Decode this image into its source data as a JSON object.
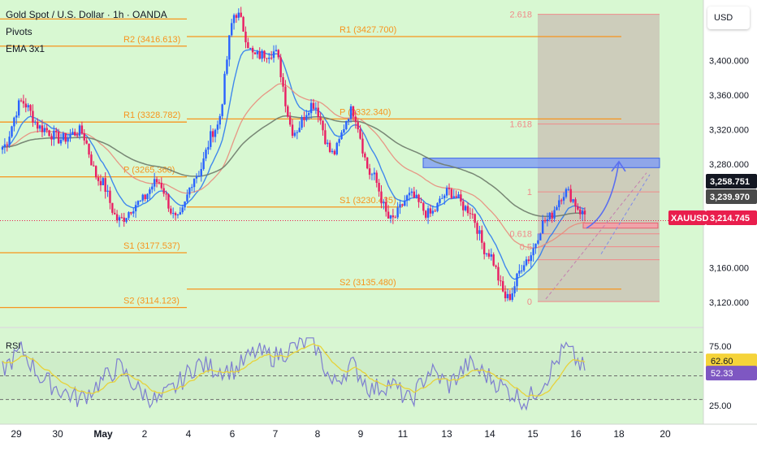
{
  "header": {
    "title": "Gold Spot / U.S. Dollar · 1h · OANDA",
    "indicator1": "Pivots",
    "indicator2": "EMA 3x1"
  },
  "currency_button": "USD",
  "rsi_label": "RSI",
  "colors": {
    "bg": "#d8f8d2",
    "rsi_bg": "#d8f6d2",
    "pivot": "#f7941d",
    "ema_fast": "#2f7bf0",
    "ema_mid": "#e98c7c",
    "ema_slow": "#6e7a6a",
    "up": "#2962ff",
    "down": "#e91e63",
    "rsi": "#7e7ed0",
    "rsi_ma": "#e7d23a",
    "zone": "#c9bfb3",
    "blue_zone": "#7f9cf5",
    "red_zone": "#f4a0a8"
  },
  "chart_data": {
    "type": "candlestick",
    "title": "Gold Spot / U.S. Dollar · 1h · OANDA",
    "symbol": "XAUUSD",
    "ylim": [
      3092,
      3470
    ],
    "y_ticks": [
      "3,400.000",
      "3,360.000",
      "3,320.000",
      "3,280.000",
      "3,160.000",
      "3,120.000"
    ],
    "x_ticks": [
      "29",
      "30",
      "May",
      "2",
      "4",
      "6",
      "7",
      "8",
      "9",
      "11",
      "13",
      "14",
      "15",
      "16",
      "18",
      "20"
    ],
    "price_labels": [
      {
        "text": "3,258.751",
        "value": 3258.751,
        "color": "#131722"
      },
      {
        "text": "3,239.970",
        "value": 3239.97,
        "color": "#4a4a4a"
      },
      {
        "text": "3,214.745",
        "value": 3214.745,
        "color": "#e91e4d"
      }
    ],
    "symbol_label": "XAUUSD",
    "pivot_levels": [
      {
        "label": "R2 (3416.613)",
        "value": 3416.613
      },
      {
        "label": "R1 (3328.782)",
        "value": 3328.782
      },
      {
        "label": "P (3265.360)",
        "value": 3265.36
      },
      {
        "label": "S1 (3177.537)",
        "value": 3177.537
      },
      {
        "label": "S2 (3114.123)",
        "value": 3114.123
      },
      {
        "label": "R1 (3427.700)",
        "value": 3427.7
      },
      {
        "label": "P (3332.340)",
        "value": 3332.34
      },
      {
        "label": "S1 (3230.435)",
        "value": 3230.435
      },
      {
        "label": "S2 (3135.480)",
        "value": 3135.48
      }
    ],
    "fib_levels": [
      {
        "label": "2.618",
        "ratio": 2.618
      },
      {
        "label": "1.618",
        "ratio": 1.618
      },
      {
        "label": "1",
        "ratio": 1
      },
      {
        "label": "0.618",
        "ratio": 0.618
      },
      {
        "label": "0.5",
        "ratio": 0.5
      },
      {
        "label": "0",
        "ratio": 0
      }
    ],
    "fib_low": 3121,
    "fib_high": 3248,
    "zones": [
      {
        "name": "resistance",
        "from": 3276,
        "to": 3287
      },
      {
        "name": "support",
        "from": 3206,
        "to": 3212
      }
    ],
    "ohlc_keypoints": [
      3300,
      3352,
      3322,
      3309,
      3318,
      3262,
      3215,
      3235,
      3260,
      3215,
      3268,
      3322,
      3455,
      3405,
      3410,
      3318,
      3350,
      3292,
      3342,
      3268,
      3215,
      3243,
      3222,
      3248,
      3228,
      3178,
      3125,
      3170,
      3215,
      3248,
      3222
    ],
    "rsi": {
      "ylim": [
        0,
        100
      ],
      "y_ticks": [
        "75.00",
        "25.00"
      ],
      "bands": [
        70,
        50,
        30
      ],
      "rsi_value": 62.6,
      "rsi_ma_value": 52.33,
      "rsi_label": "62.60",
      "rsi_ma_label": "52.33",
      "keypoints": [
        55,
        72,
        48,
        38,
        30,
        44,
        58,
        38,
        28,
        42,
        60,
        56,
        55,
        70,
        66,
        74,
        80,
        42,
        60,
        38,
        44,
        28,
        55,
        42,
        60,
        50,
        38,
        28,
        48,
        74,
        55
      ]
    }
  }
}
